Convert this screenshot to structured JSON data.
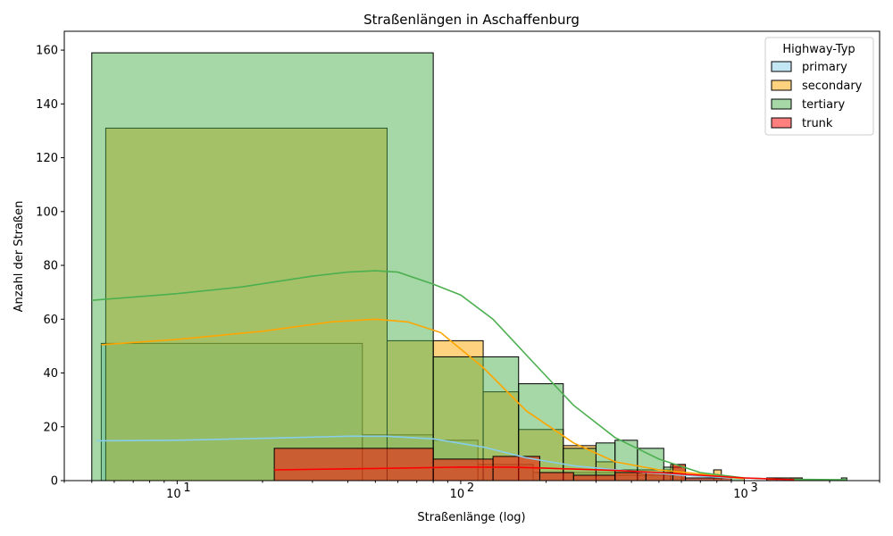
{
  "chart_data": {
    "type": "bar",
    "title": "Straßenlängen in Aschaffenburg",
    "xlabel": "Straßenlänge (log)",
    "ylabel": "Anzahl der Straßen",
    "xscale": "log",
    "xlim": [
      4.0,
      3000
    ],
    "ylim": [
      0,
      167
    ],
    "xticks": [
      {
        "value": 10,
        "label": "10"
      },
      {
        "value": 100,
        "label": "10"
      },
      {
        "value": 1000,
        "label": "10"
      }
    ],
    "xtick_exponents": [
      "1",
      "2",
      "3"
    ],
    "yticks": [
      0,
      20,
      40,
      60,
      80,
      100,
      120,
      140,
      160
    ],
    "grid": false,
    "legend": {
      "title": "Highway-Typ",
      "placement": "top-right",
      "entries": [
        "primary",
        "secondary",
        "tertiary",
        "trunk"
      ]
    },
    "series": [
      {
        "name": "primary",
        "color": "#87CEEB",
        "bins": [
          {
            "x0": 5.4,
            "x1": 45,
            "count": 51
          },
          {
            "x0": 45,
            "x1": 80,
            "count": 17
          },
          {
            "x0": 80,
            "x1": 115,
            "count": 15
          },
          {
            "x0": 115,
            "x1": 180,
            "count": 6
          },
          {
            "x0": 180,
            "x1": 350,
            "count": 3
          },
          {
            "x0": 350,
            "x1": 600,
            "count": 2
          },
          {
            "x0": 600,
            "x1": 900,
            "count": 1
          }
        ],
        "kde": [
          [
            5.2,
            14.8
          ],
          [
            10,
            15.0
          ],
          [
            20,
            15.7
          ],
          [
            40,
            16.5
          ],
          [
            55,
            16.5
          ],
          [
            80,
            15.5
          ],
          [
            120,
            12.5
          ],
          [
            170,
            8.5
          ],
          [
            250,
            5.5
          ],
          [
            400,
            3.5
          ],
          [
            600,
            2.0
          ],
          [
            900,
            1.0
          ],
          [
            1000,
            0.6
          ]
        ]
      },
      {
        "name": "secondary",
        "color": "#FFA500",
        "bins": [
          {
            "x0": 5.6,
            "x1": 55,
            "count": 131
          },
          {
            "x0": 55,
            "x1": 80,
            "count": 52
          },
          {
            "x0": 80,
            "x1": 120,
            "count": 52
          },
          {
            "x0": 120,
            "x1": 160,
            "count": 33
          },
          {
            "x0": 160,
            "x1": 230,
            "count": 19
          },
          {
            "x0": 230,
            "x1": 300,
            "count": 13
          },
          {
            "x0": 300,
            "x1": 350,
            "count": 7
          },
          {
            "x0": 350,
            "x1": 550,
            "count": 4
          },
          {
            "x0": 550,
            "x1": 620,
            "count": 6
          },
          {
            "x0": 780,
            "x1": 830,
            "count": 4
          }
        ],
        "kde": [
          [
            5.4,
            50.5
          ],
          [
            10,
            52.5
          ],
          [
            20,
            55.5
          ],
          [
            35,
            59.0
          ],
          [
            50,
            60.0
          ],
          [
            65,
            59.0
          ],
          [
            85,
            55.0
          ],
          [
            120,
            42.0
          ],
          [
            170,
            26.0
          ],
          [
            250,
            14.0
          ],
          [
            350,
            7.0
          ],
          [
            500,
            4.0
          ],
          [
            700,
            2.5
          ],
          [
            900,
            1.2
          ],
          [
            1000,
            0.7
          ]
        ]
      },
      {
        "name": "tertiary",
        "color": "#4CAF50",
        "bins": [
          {
            "x0": 5.0,
            "x1": 80,
            "count": 159
          },
          {
            "x0": 80,
            "x1": 160,
            "count": 46
          },
          {
            "x0": 160,
            "x1": 230,
            "count": 36
          },
          {
            "x0": 230,
            "x1": 300,
            "count": 12
          },
          {
            "x0": 300,
            "x1": 350,
            "count": 14
          },
          {
            "x0": 350,
            "x1": 420,
            "count": 15
          },
          {
            "x0": 420,
            "x1": 520,
            "count": 12
          },
          {
            "x0": 520,
            "x1": 620,
            "count": 5
          },
          {
            "x0": 620,
            "x1": 1000,
            "count": 1
          },
          {
            "x0": 1200,
            "x1": 1300,
            "count": 1
          },
          {
            "x0": 1450,
            "x1": 1600,
            "count": 1
          },
          {
            "x0": 2200,
            "x1": 2300,
            "count": 1
          }
        ],
        "kde": [
          [
            5.0,
            67.0
          ],
          [
            10,
            69.5
          ],
          [
            17,
            72.0
          ],
          [
            30,
            76.0
          ],
          [
            40,
            77.5
          ],
          [
            50,
            78.0
          ],
          [
            60,
            77.5
          ],
          [
            80,
            73.0
          ],
          [
            100,
            69.0
          ],
          [
            130,
            60.0
          ],
          [
            180,
            44.0
          ],
          [
            250,
            28.0
          ],
          [
            350,
            16.0
          ],
          [
            500,
            8.0
          ],
          [
            700,
            3.0
          ],
          [
            1000,
            1.0
          ],
          [
            1400,
            0.5
          ],
          [
            2300,
            0.3
          ]
        ]
      },
      {
        "name": "trunk",
        "color": "#FF0000",
        "bins": [
          {
            "x0": 22,
            "x1": 80,
            "count": 12
          },
          {
            "x0": 80,
            "x1": 130,
            "count": 8
          },
          {
            "x0": 130,
            "x1": 190,
            "count": 9
          },
          {
            "x0": 190,
            "x1": 250,
            "count": 3
          },
          {
            "x0": 250,
            "x1": 350,
            "count": 2
          },
          {
            "x0": 350,
            "x1": 450,
            "count": 3
          },
          {
            "x0": 450,
            "x1": 560,
            "count": 3
          },
          {
            "x0": 560,
            "x1": 620,
            "count": 6
          },
          {
            "x0": 620,
            "x1": 900,
            "count": 1
          },
          {
            "x0": 1200,
            "x1": 1600,
            "count": 1
          }
        ],
        "kde": [
          [
            22,
            4.0
          ],
          [
            50,
            4.5
          ],
          [
            100,
            5.0
          ],
          [
            150,
            5.0
          ],
          [
            200,
            4.6
          ],
          [
            350,
            3.8
          ],
          [
            500,
            3.0
          ],
          [
            700,
            2.0
          ],
          [
            1000,
            1.0
          ],
          [
            1500,
            0.3
          ]
        ]
      }
    ]
  }
}
